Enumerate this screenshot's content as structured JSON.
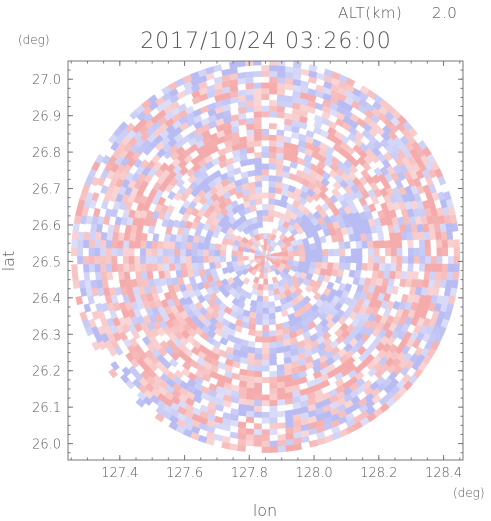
{
  "header": {
    "alt_label": "ALT(km)",
    "alt_value": "2.0",
    "timestamp": "2017/10/24 03:26:00"
  },
  "chart_data": {
    "type": "heatmap",
    "title": "2017/10/24 03:26:00",
    "xlabel": "lon",
    "ylabel": "lat",
    "x_unit": "(deg)",
    "y_unit": "(deg)",
    "xlim": [
      127.24,
      128.46
    ],
    "ylim": [
      25.955,
      27.05
    ],
    "x_ticks": [
      127.4,
      127.6,
      127.8,
      128.0,
      128.2,
      128.4
    ],
    "x_tick_labels": [
      "127.4",
      "127.6",
      "127.8",
      "128.0",
      "128.2",
      "128.4"
    ],
    "y_ticks": [
      26.0,
      26.1,
      26.2,
      26.3,
      26.4,
      26.5,
      26.6,
      26.7,
      26.8,
      26.9,
      27.0
    ],
    "y_tick_labels": [
      "26.0",
      "26.1",
      "26.2",
      "26.3",
      "26.4",
      "26.5",
      "26.6",
      "26.7",
      "26.8",
      "26.9",
      "27.0"
    ],
    "center": {
      "lon": 127.85,
      "lat": 26.515
    },
    "radius_lon_deg": 0.6,
    "radius_lat_deg": 0.54,
    "colors": {
      "positive": "#f4a7a7",
      "negative": "#b4b8f2",
      "neutral": "#ffffff",
      "frame": "#777777",
      "text": "#555555"
    }
  }
}
